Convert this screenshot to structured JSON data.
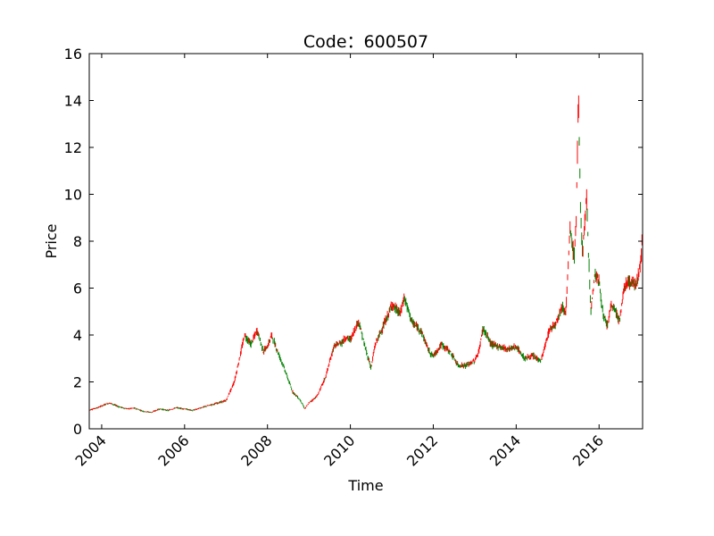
{
  "chart_data": {
    "type": "line",
    "title": "Code：600507",
    "xlabel": "Time",
    "ylabel": "Price",
    "xlim": [
      2003.7,
      2017.05
    ],
    "ylim": [
      0,
      16
    ],
    "xticks": [
      2004,
      2006,
      2008,
      2010,
      2012,
      2014,
      2016
    ],
    "xtick_labels": [
      "2004",
      "2006",
      "2008",
      "2010",
      "2012",
      "2014",
      "2016"
    ],
    "yticks": [
      0,
      2,
      4,
      6,
      8,
      10,
      12,
      14,
      16
    ],
    "ytick_labels": [
      "0",
      "2",
      "4",
      "6",
      "8",
      "10",
      "12",
      "14",
      "16"
    ],
    "grid": false,
    "legend": "none",
    "colors": {
      "up": "#ff0000",
      "down": "#008000"
    },
    "series": [
      {
        "x": [
          2003.7,
          2003.9,
          2004.1,
          2004.2,
          2004.4,
          2004.6,
          2004.8,
          2005.0,
          2005.2,
          2005.4,
          2005.6,
          2005.8,
          2006.0,
          2006.2,
          2006.4,
          2006.6,
          2006.8,
          2007.0,
          2007.2,
          2007.3,
          2007.45,
          2007.6,
          2007.75,
          2007.9,
          2008.0,
          2008.1,
          2008.2,
          2008.4,
          2008.6,
          2008.8,
          2008.9,
          2009.0,
          2009.2,
          2009.4,
          2009.6,
          2009.8,
          2009.9,
          2010.0,
          2010.2,
          2010.35,
          2010.5,
          2010.6,
          2010.7,
          2010.9,
          2011.0,
          2011.2,
          2011.3,
          2011.5,
          2011.7,
          2011.9,
          2012.0,
          2012.2,
          2012.4,
          2012.6,
          2012.8,
          2013.0,
          2013.1,
          2013.2,
          2013.4,
          2013.6,
          2013.8,
          2014.0,
          2014.2,
          2014.4,
          2014.6,
          2014.8,
          2014.95,
          2015.1,
          2015.2,
          2015.3,
          2015.4,
          2015.45,
          2015.5,
          2015.55,
          2015.6,
          2015.7,
          2015.8,
          2015.9,
          2016.0,
          2016.1,
          2016.2,
          2016.3,
          2016.4,
          2016.5,
          2016.6,
          2016.7,
          2016.8,
          2016.9,
          2017.0,
          2017.05
        ],
        "y": [
          0.8,
          0.9,
          1.05,
          1.1,
          0.95,
          0.85,
          0.88,
          0.75,
          0.7,
          0.85,
          0.78,
          0.9,
          0.85,
          0.78,
          0.9,
          1.0,
          1.1,
          1.2,
          2.0,
          2.8,
          4.0,
          3.6,
          4.2,
          3.3,
          3.5,
          4.0,
          3.5,
          2.6,
          1.6,
          1.2,
          0.85,
          1.1,
          1.4,
          2.2,
          3.5,
          3.7,
          3.9,
          3.8,
          4.6,
          3.5,
          2.6,
          3.6,
          4.0,
          4.8,
          5.3,
          4.9,
          5.6,
          4.5,
          4.2,
          3.3,
          3.1,
          3.6,
          3.3,
          2.7,
          2.7,
          2.9,
          3.3,
          4.3,
          3.6,
          3.5,
          3.4,
          3.5,
          3.0,
          3.1,
          2.9,
          4.2,
          4.5,
          5.2,
          5.0,
          8.5,
          7.3,
          9.0,
          14.2,
          9.5,
          7.5,
          9.8,
          5.0,
          6.6,
          6.3,
          4.8,
          4.4,
          5.3,
          5.0,
          4.6,
          6.0,
          6.3,
          6.2,
          6.2,
          7.0,
          8.3
        ]
      }
    ]
  }
}
